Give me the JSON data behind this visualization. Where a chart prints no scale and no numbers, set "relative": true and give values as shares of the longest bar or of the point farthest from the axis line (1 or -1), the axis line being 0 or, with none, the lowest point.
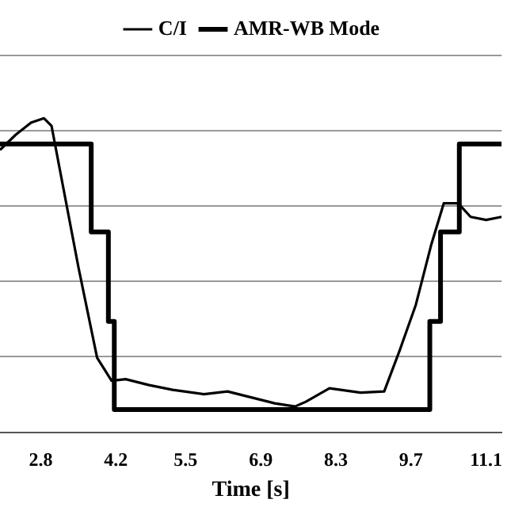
{
  "chart_data": {
    "type": "line",
    "xlabel": "Time [s]",
    "relative": true,
    "grid": "y",
    "legend": "top",
    "xlim": [
      2.04,
      11.39
    ],
    "xticks": [
      2.8,
      4.2,
      5.5,
      6.9,
      8.3,
      9.7,
      11.1
    ],
    "series": [
      {
        "name": "C/I",
        "color": "#000000",
        "x": [
          2.04,
          2.33,
          2.62,
          2.86,
          3.0,
          3.15,
          3.5,
          3.85,
          4.12,
          4.38,
          4.82,
          5.26,
          5.84,
          6.28,
          6.72,
          7.16,
          7.54,
          7.74,
          8.18,
          8.76,
          9.2,
          9.49,
          9.79,
          10.08,
          10.31,
          10.58,
          10.81,
          11.1,
          11.39
        ],
        "values": [
          0.899,
          0.947,
          0.986,
          1.0,
          0.976,
          0.841,
          0.527,
          0.237,
          0.164,
          0.169,
          0.15,
          0.135,
          0.121,
          0.13,
          0.111,
          0.092,
          0.082,
          0.097,
          0.14,
          0.126,
          0.13,
          0.261,
          0.406,
          0.599,
          0.729,
          0.729,
          0.686,
          0.676,
          0.686
        ]
      },
      {
        "name": "AMR-WB Mode",
        "type": "step",
        "color": "#000000",
        "x": [
          2.04,
          3.74,
          4.06,
          4.17,
          10.05,
          10.25,
          10.6,
          11.39
        ],
        "values": [
          0.918,
          0.638,
          0.353,
          0.072,
          0.353,
          0.638,
          0.918,
          0.918
        ]
      }
    ]
  }
}
